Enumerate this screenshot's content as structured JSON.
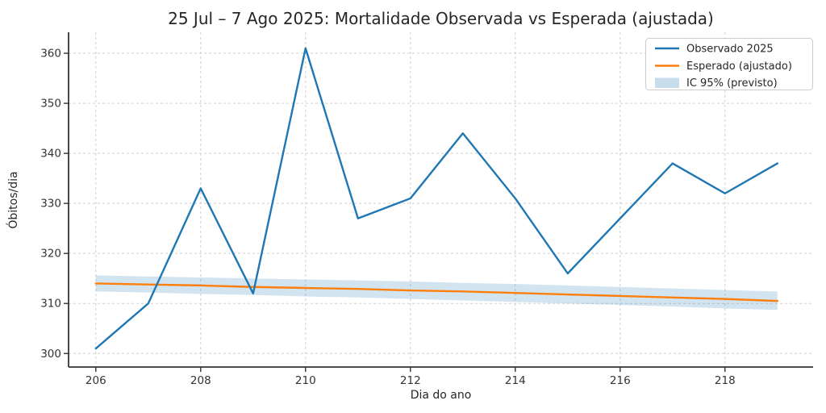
{
  "chart_data": {
    "type": "line",
    "title": "25 Jul – 7 Ago 2025: Mortalidade Observada vs Esperada (ajustada)",
    "xlabel": "Dia do ano",
    "ylabel": "Óbitos/dia",
    "x": [
      206,
      207,
      208,
      209,
      210,
      211,
      212,
      213,
      214,
      215,
      216,
      217,
      218,
      219
    ],
    "series": [
      {
        "name": "Observado 2025",
        "color": "#1f77b4",
        "values": [
          301,
          310,
          333,
          312,
          361,
          327,
          331,
          344,
          331,
          316,
          327,
          338,
          332,
          338
        ]
      },
      {
        "name": "Esperado (ajustado)",
        "color": "#ff7f0e",
        "values": [
          314.0,
          313.8,
          313.6,
          313.3,
          313.1,
          312.9,
          312.6,
          312.4,
          312.1,
          311.8,
          311.5,
          311.2,
          310.9,
          310.5
        ]
      }
    ],
    "band": {
      "name": "IC 95% (previsto)",
      "color": "#1f77b4",
      "opacity": 0.2,
      "upper": [
        315.6,
        315.4,
        315.2,
        315.0,
        314.8,
        314.6,
        314.4,
        314.1,
        313.9,
        313.6,
        313.3,
        313.0,
        312.7,
        312.4
      ],
      "lower": [
        312.4,
        312.2,
        311.9,
        311.7,
        311.4,
        311.2,
        310.9,
        310.6,
        310.3,
        310.0,
        309.7,
        309.4,
        309.0,
        308.7
      ]
    },
    "xticks": [
      206,
      208,
      210,
      212,
      214,
      216,
      218
    ],
    "yticks": [
      300,
      310,
      320,
      330,
      340,
      350,
      360
    ],
    "xlim": [
      205.48,
      219.68
    ],
    "ylim": [
      297.3,
      364.2
    ],
    "grid": true,
    "legend_position": "upper right"
  }
}
